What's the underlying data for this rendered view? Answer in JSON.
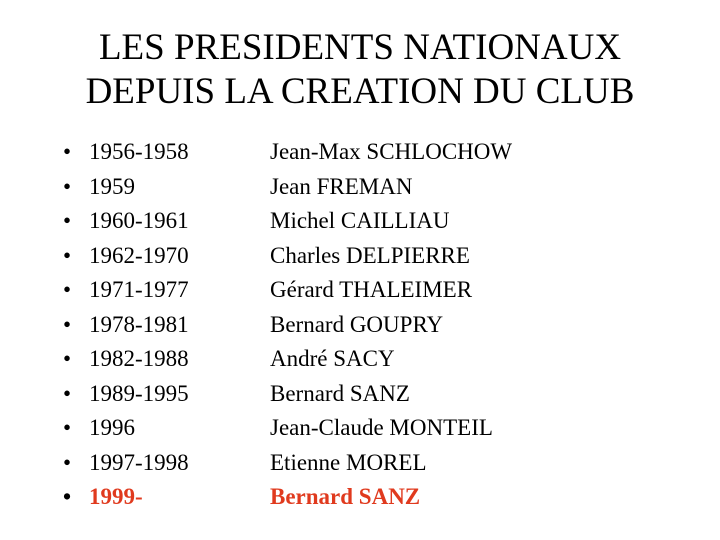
{
  "title": {
    "line1": "LES PRESIDENTS NATIONAUX",
    "line2": "DEPUIS LA CREATION DU CLUB"
  },
  "bullet_glyph": "•",
  "colors": {
    "text": "#000000",
    "highlight": "#e03a1e",
    "background": "#ffffff"
  },
  "presidents": [
    {
      "years": "1956-1958",
      "name": "Jean-Max SCHLOCHOW"
    },
    {
      "years": "1959",
      "name": "Jean FREMAN"
    },
    {
      "years": "1960-1961",
      "name": "Michel CAILLIAU"
    },
    {
      "years": "1962-1970",
      "name": "Charles DELPIERRE"
    },
    {
      "years": "1971-1977",
      "name": "Gérard THALEIMER"
    },
    {
      "years": "1978-1981",
      "name": "Bernard GOUPRY"
    },
    {
      "years": "1982-1988",
      "name": "André SACY"
    },
    {
      "years": "1989-1995",
      "name": "Bernard SANZ"
    },
    {
      "years": "1996",
      "name": "Jean-Claude MONTEIL"
    },
    {
      "years": "1997-1998",
      "name": "Etienne MOREL"
    },
    {
      "years": "1999-",
      "name": "Bernard SANZ",
      "highlight": true
    }
  ]
}
